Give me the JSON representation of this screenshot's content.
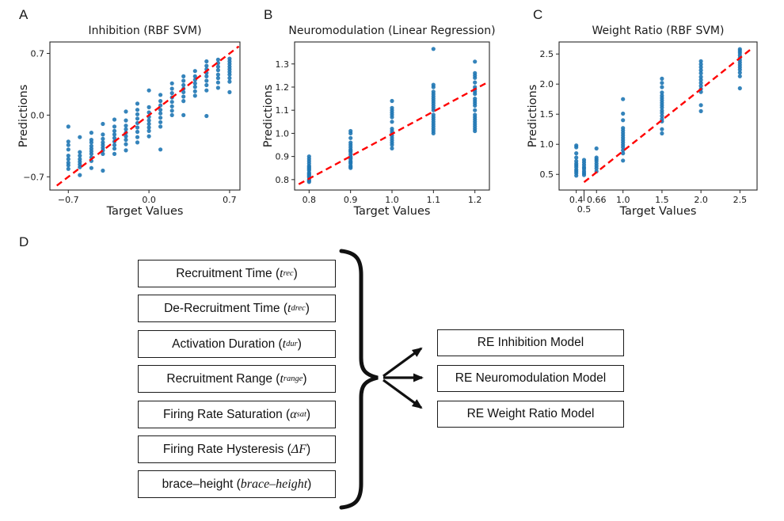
{
  "figure": {
    "background": "#ffffff",
    "point_color": "#1f77b4",
    "line_color": "#ff0000",
    "panel_labels": [
      "A",
      "B",
      "C",
      "D"
    ]
  },
  "chart_data": [
    {
      "type": "scatter",
      "panel_label": "A",
      "title": "Inhibition (RBF SVM)",
      "xlabel": "Target Values",
      "ylabel": "Predictions",
      "xlim": [
        -0.86,
        0.79
      ],
      "ylim": [
        -0.85,
        0.83
      ],
      "grid": false,
      "legend": null,
      "xticks": [
        {
          "v": -0.7,
          "label": "−0.7"
        },
        {
          "v": 0.0,
          "label": "0.0"
        },
        {
          "v": 0.7,
          "label": "0.7"
        }
      ],
      "yticks": [
        {
          "v": 0.7,
          "label": "0.7"
        },
        {
          "v": 0.0,
          "label": "0.0"
        },
        {
          "v": -0.7,
          "label": "−0.7"
        }
      ],
      "identity_line": {
        "x1": -0.8,
        "y1": -0.8,
        "x2": 0.78,
        "y2": 0.78
      },
      "point_color": "#1f77b4",
      "line_color": "#ff0000",
      "clusters": [
        {
          "x": -0.7,
          "ys": [
            -0.13,
            -0.3,
            -0.34,
            -0.39,
            -0.46,
            -0.5,
            -0.54,
            -0.57,
            -0.61
          ]
        },
        {
          "x": -0.6,
          "ys": [
            -0.25,
            -0.42,
            -0.46,
            -0.5,
            -0.53,
            -0.56,
            -0.59,
            -0.68
          ]
        },
        {
          "x": -0.5,
          "ys": [
            -0.2,
            -0.28,
            -0.31,
            -0.35,
            -0.38,
            -0.41,
            -0.44,
            -0.48,
            -0.52,
            -0.6
          ]
        },
        {
          "x": -0.4,
          "ys": [
            -0.1,
            -0.22,
            -0.27,
            -0.31,
            -0.34,
            -0.37,
            -0.4,
            -0.44,
            -0.63
          ]
        },
        {
          "x": -0.3,
          "ys": [
            -0.05,
            -0.13,
            -0.18,
            -0.22,
            -0.26,
            -0.3,
            -0.34,
            -0.38,
            -0.44
          ]
        },
        {
          "x": -0.2,
          "ys": [
            0.04,
            -0.06,
            -0.12,
            -0.16,
            -0.2,
            -0.24,
            -0.28,
            -0.33,
            -0.4
          ]
        },
        {
          "x": -0.1,
          "ys": [
            0.13,
            0.06,
            0.01,
            -0.04,
            -0.09,
            -0.14,
            -0.19,
            -0.25,
            -0.31
          ]
        },
        {
          "x": 0.0,
          "ys": [
            0.28,
            0.09,
            0.03,
            -0.02,
            -0.06,
            -0.1,
            -0.14,
            -0.18,
            -0.24
          ]
        },
        {
          "x": 0.1,
          "ys": [
            0.23,
            0.16,
            0.11,
            0.06,
            0.02,
            -0.03,
            -0.08,
            -0.13,
            -0.39
          ]
        },
        {
          "x": 0.2,
          "ys": [
            0.36,
            0.3,
            0.25,
            0.2,
            0.15,
            0.1,
            0.05,
            0.0
          ]
        },
        {
          "x": 0.3,
          "ys": [
            0.44,
            0.39,
            0.34,
            0.3,
            0.26,
            0.21,
            0.16,
            0.0
          ]
        },
        {
          "x": 0.4,
          "ys": [
            0.5,
            0.44,
            0.4,
            0.36,
            0.32,
            0.27,
            0.22
          ]
        },
        {
          "x": 0.5,
          "ys": [
            0.61,
            0.56,
            0.52,
            0.48,
            0.44,
            0.39,
            0.34,
            0.28,
            -0.01
          ]
        },
        {
          "x": 0.6,
          "ys": [
            0.63,
            0.59,
            0.55,
            0.51,
            0.46,
            0.42,
            0.37,
            0.31
          ]
        },
        {
          "x": 0.7,
          "ys": [
            0.64,
            0.61,
            0.58,
            0.55,
            0.52,
            0.49,
            0.46,
            0.42,
            0.38,
            0.26
          ]
        }
      ]
    },
    {
      "type": "scatter",
      "panel_label": "B",
      "title": "Neuromodulation (Linear Regression)",
      "xlabel": "Target Values",
      "ylabel": "Predictions",
      "xlim": [
        0.765,
        1.235
      ],
      "ylim": [
        0.755,
        1.395
      ],
      "grid": false,
      "legend": null,
      "xticks": [
        {
          "v": 0.8,
          "label": "0.8"
        },
        {
          "v": 0.9,
          "label": "0.9"
        },
        {
          "v": 1.0,
          "label": "1.0"
        },
        {
          "v": 1.1,
          "label": "1.1"
        },
        {
          "v": 1.2,
          "label": "1.2"
        }
      ],
      "yticks": [
        {
          "v": 1.3,
          "label": "1.3"
        },
        {
          "v": 1.2,
          "label": "1.2"
        },
        {
          "v": 1.1,
          "label": "1.1"
        },
        {
          "v": 1.0,
          "label": "1.0"
        },
        {
          "v": 0.9,
          "label": "0.9"
        },
        {
          "v": 0.8,
          "label": "0.8"
        }
      ],
      "identity_line": {
        "x1": 0.775,
        "y1": 0.78,
        "x2": 1.228,
        "y2": 1.218
      },
      "point_color": "#1f77b4",
      "line_color": "#ff0000",
      "clusters": [
        {
          "x": 0.8,
          "ys": [
            0.79,
            0.795,
            0.8,
            0.81,
            0.815,
            0.82,
            0.825,
            0.83,
            0.84,
            0.845,
            0.85,
            0.855,
            0.86,
            0.87,
            0.88,
            0.89,
            0.9
          ]
        },
        {
          "x": 0.9,
          "ys": [
            0.85,
            0.855,
            0.86,
            0.87,
            0.875,
            0.88,
            0.89,
            0.895,
            0.9,
            0.91,
            0.92,
            0.925,
            0.93,
            0.94,
            0.95,
            0.96,
            0.98,
            1.0,
            1.01
          ]
        },
        {
          "x": 1.0,
          "ys": [
            0.935,
            0.95,
            0.96,
            0.97,
            0.98,
            0.99,
            1.0,
            1.01,
            1.02,
            1.05,
            1.07,
            1.08,
            1.09,
            1.1,
            1.11,
            1.14
          ]
        },
        {
          "x": 1.1,
          "ys": [
            1.0,
            1.01,
            1.02,
            1.03,
            1.04,
            1.05,
            1.06,
            1.07,
            1.08,
            1.1,
            1.11,
            1.12,
            1.13,
            1.14,
            1.15,
            1.16,
            1.17,
            1.18,
            1.2,
            1.21,
            1.365
          ]
        },
        {
          "x": 1.2,
          "ys": [
            1.01,
            1.02,
            1.03,
            1.04,
            1.05,
            1.06,
            1.07,
            1.08,
            1.1,
            1.12,
            1.13,
            1.14,
            1.15,
            1.17,
            1.18,
            1.19,
            1.2,
            1.22,
            1.24,
            1.25,
            1.26,
            1.31
          ]
        }
      ]
    },
    {
      "type": "scatter",
      "panel_label": "C",
      "title": "Weight Ratio (RBF SVM)",
      "xlabel": "Target Values",
      "ylabel": "Predictions",
      "xlim": [
        0.18,
        2.72
      ],
      "ylim": [
        0.24,
        2.7
      ],
      "grid": false,
      "legend": null,
      "xticks": [
        {
          "v": 0.4,
          "label": "0.4"
        },
        {
          "v": 0.5,
          "label": "0.5",
          "row": 2
        },
        {
          "v": 0.66,
          "label": "0.66"
        },
        {
          "v": 1.0,
          "label": "1.0"
        },
        {
          "v": 1.5,
          "label": "1.5"
        },
        {
          "v": 2.0,
          "label": "2.0"
        },
        {
          "v": 2.5,
          "label": "2.5"
        }
      ],
      "yticks": [
        {
          "v": 2.5,
          "label": "2.5"
        },
        {
          "v": 2.0,
          "label": "2.0"
        },
        {
          "v": 1.5,
          "label": "1.5"
        },
        {
          "v": 1.0,
          "label": "1.0"
        },
        {
          "v": 0.5,
          "label": "0.5"
        }
      ],
      "identity_line": {
        "x1": 0.5,
        "y1": 0.37,
        "x2": 2.66,
        "y2": 2.6
      },
      "point_color": "#1f77b4",
      "line_color": "#ff0000",
      "clusters": [
        {
          "x": 0.4,
          "ys": [
            0.98,
            0.95,
            0.85,
            0.78,
            0.72,
            0.68,
            0.65,
            0.62,
            0.58,
            0.55,
            0.52,
            0.48
          ]
        },
        {
          "x": 0.5,
          "ys": [
            0.74,
            0.7,
            0.66,
            0.62,
            0.59,
            0.55,
            0.52,
            0.49
          ]
        },
        {
          "x": 0.66,
          "ys": [
            0.93,
            0.78,
            0.75,
            0.72,
            0.68,
            0.64,
            0.6,
            0.55
          ]
        },
        {
          "x": 1.0,
          "ys": [
            1.75,
            1.51,
            1.4,
            1.27,
            1.23,
            1.19,
            1.15,
            1.11,
            1.07,
            1.03,
            0.99,
            0.95,
            0.9,
            0.85,
            0.73
          ]
        },
        {
          "x": 1.5,
          "ys": [
            2.09,
            2.02,
            1.95,
            1.86,
            1.81,
            1.77,
            1.73,
            1.69,
            1.65,
            1.61,
            1.56,
            1.52,
            1.47,
            1.42,
            1.38,
            1.25,
            1.18
          ]
        },
        {
          "x": 2.0,
          "ys": [
            2.38,
            2.33,
            2.28,
            2.23,
            2.18,
            2.12,
            2.07,
            2.02,
            1.97,
            1.92,
            1.87,
            1.65,
            1.55
          ]
        },
        {
          "x": 2.5,
          "ys": [
            2.58,
            2.55,
            2.52,
            2.48,
            2.44,
            2.4,
            2.36,
            2.32,
            2.28,
            2.24,
            2.19,
            2.13,
            1.93
          ]
        }
      ]
    }
  ],
  "diagram": {
    "panel_label": "D",
    "parameters": [
      {
        "name": "Recruitment Time",
        "sym": "t",
        "sub": "rec"
      },
      {
        "name": "De-Recruitment Time",
        "sym": "t",
        "sub": "drec"
      },
      {
        "name": "Activation Duration",
        "sym": "t",
        "sub": "dur"
      },
      {
        "name": "Recruitment Range",
        "sym": "t",
        "sub": "range"
      },
      {
        "name": "Firing Rate Saturation",
        "sym": "α",
        "sub": "sat"
      },
      {
        "name": "Firing Rate Hysteresis",
        "sym": "ΔF",
        "sub": ""
      },
      {
        "name": "brace–height",
        "sym": "brace–height",
        "sub": ""
      }
    ],
    "models": [
      {
        "label": "RE Inhibition Model"
      },
      {
        "label": "RE Neuromodulation Model"
      },
      {
        "label": "RE Weight Ratio Model"
      }
    ]
  }
}
